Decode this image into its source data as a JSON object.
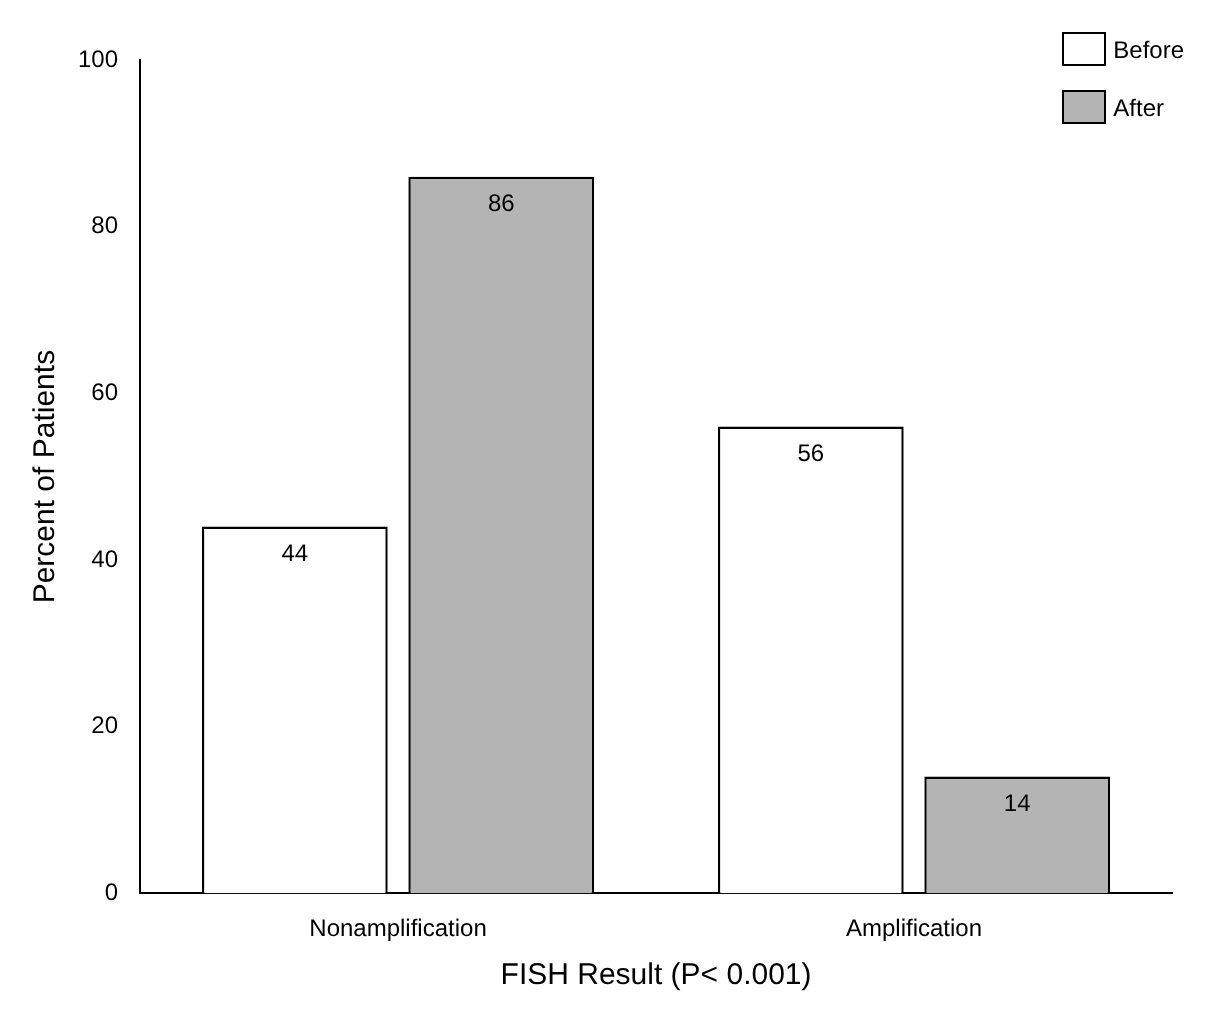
{
  "chart_data": {
    "type": "bar",
    "xlabel": "FISH Result (P< 0.001)",
    "ylabel": "Percent of Patients",
    "categories": [
      "Nonamplification",
      "Amplification"
    ],
    "series": [
      {
        "name": "Before",
        "color": "#ffffff",
        "values": [
          44,
          56
        ]
      },
      {
        "name": "After",
        "color": "#b4b4b4",
        "values": [
          86,
          14
        ]
      }
    ],
    "ylim": [
      0,
      100
    ],
    "yticks": [
      0,
      20,
      40,
      60,
      80,
      100
    ],
    "grid": false,
    "legend": "top right",
    "data_labels": true
  }
}
